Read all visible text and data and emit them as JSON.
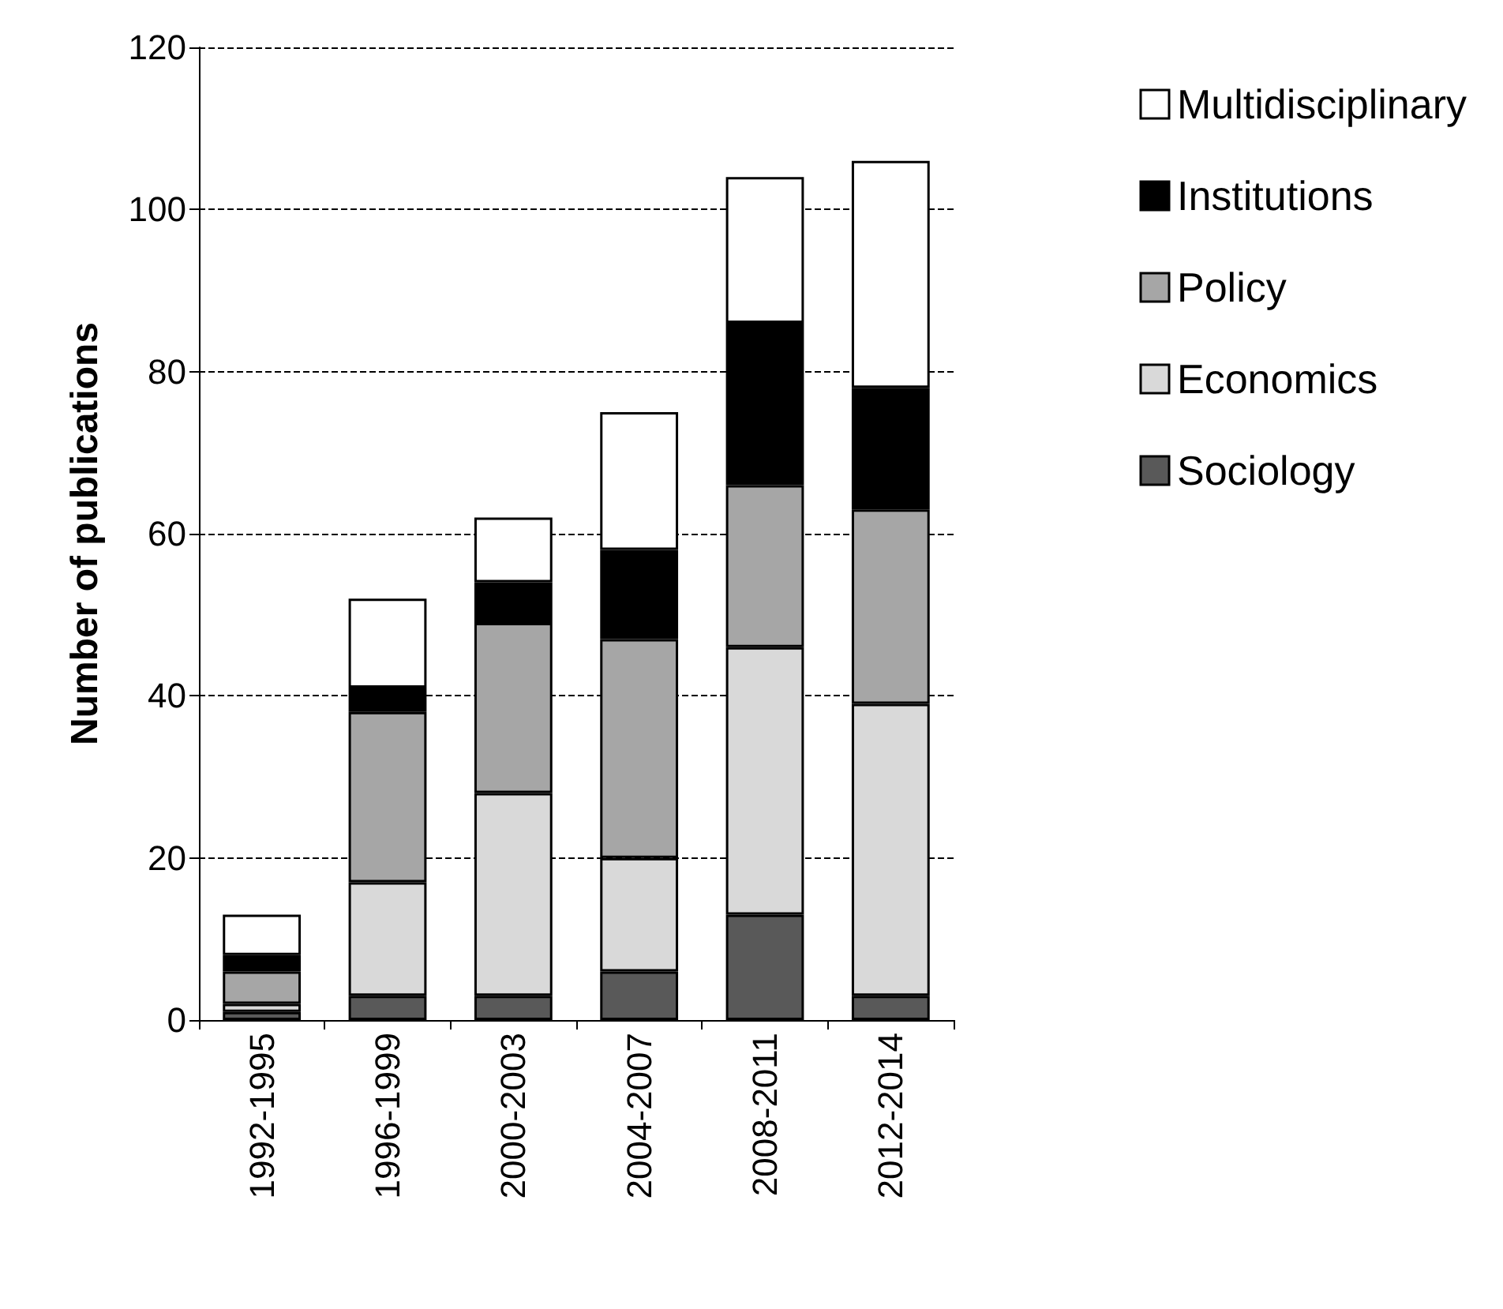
{
  "chart_data": {
    "type": "bar",
    "stacked": true,
    "ylabel": "Number of publications",
    "categories": [
      "1992-1995",
      "1996-1999",
      "2000-2003",
      "2004-2007",
      "2008-2011",
      "2012-2014"
    ],
    "series": [
      {
        "name": "Sociology",
        "color": "#595959",
        "values": [
          1,
          3,
          3,
          6,
          13,
          3
        ]
      },
      {
        "name": "Economics",
        "color": "#d9d9d9",
        "values": [
          1,
          14,
          25,
          14,
          33,
          36
        ]
      },
      {
        "name": "Policy",
        "color": "#a6a6a6",
        "values": [
          4,
          21,
          21,
          27,
          20,
          24
        ]
      },
      {
        "name": "Institutions",
        "color": "#000000",
        "values": [
          2,
          3,
          5,
          11,
          20,
          15
        ]
      },
      {
        "name": "Multidisciplinary",
        "color": "#ffffff",
        "values": [
          5,
          11,
          8,
          17,
          18,
          28
        ]
      }
    ],
    "ylim": [
      0,
      120
    ],
    "yticks": [
      0,
      20,
      40,
      60,
      80,
      100,
      120
    ],
    "grid": "y",
    "legend": "right"
  }
}
